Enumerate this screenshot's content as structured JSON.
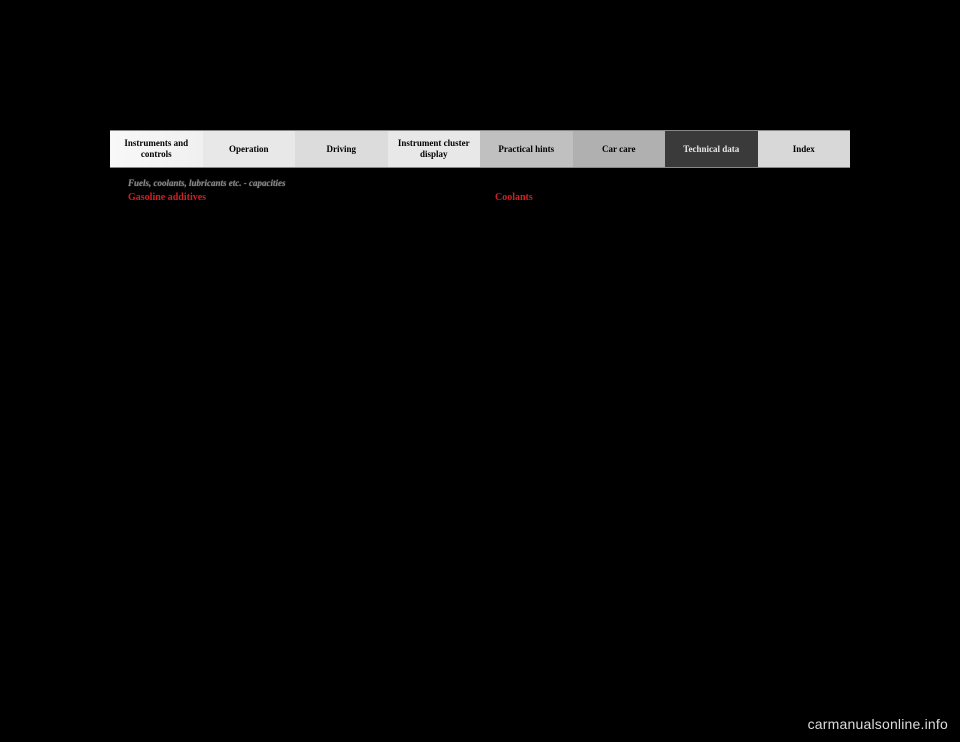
{
  "tabs": [
    {
      "label": "Instruments and controls"
    },
    {
      "label": "Operation"
    },
    {
      "label": "Driving"
    },
    {
      "label": "Instrument cluster display"
    },
    {
      "label": "Practical hints"
    },
    {
      "label": "Car care"
    },
    {
      "label": "Technical data"
    },
    {
      "label": "Index"
    }
  ],
  "breadcrumb": "Fuels, coolants, lubricants etc. - capacities",
  "left": {
    "heading": "Gasoline additives"
  },
  "right": {
    "heading": "Coolants"
  },
  "watermark": "carmanualsonline.info",
  "colors": {
    "page_bg": "#000000",
    "heading_color": "#d22020",
    "active_tab_bg": "#3a3a3a",
    "active_tab_text": "#e8e8e8",
    "watermark_color": "#dddddd"
  }
}
